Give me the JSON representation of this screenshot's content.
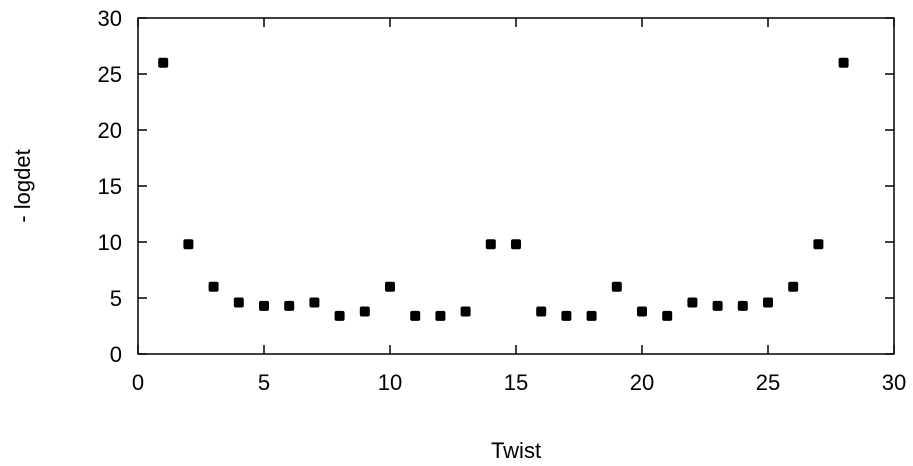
{
  "chart_data": {
    "type": "scatter",
    "title": "",
    "xlabel": "Twist",
    "ylabel": "- logdet",
    "xlim": [
      0,
      30
    ],
    "ylim": [
      0,
      30
    ],
    "xticks": [
      0,
      5,
      10,
      15,
      20,
      25,
      30
    ],
    "yticks": [
      0,
      5,
      10,
      15,
      20,
      25,
      30
    ],
    "grid": false,
    "marker_color": "#000000",
    "series": [
      {
        "x": [
          1,
          2,
          3,
          4,
          5,
          6,
          7,
          8,
          9,
          10,
          11,
          12,
          13,
          14,
          15,
          16,
          17,
          18,
          19,
          20,
          21,
          22,
          23,
          24,
          25,
          26,
          27,
          28
        ],
        "y": [
          26.0,
          9.8,
          6.0,
          4.6,
          4.3,
          4.3,
          4.6,
          3.4,
          3.8,
          6.0,
          3.4,
          3.4,
          3.8,
          9.8,
          9.8,
          3.8,
          3.4,
          3.4,
          6.0,
          3.8,
          3.4,
          4.6,
          4.3,
          4.3,
          4.6,
          6.0,
          9.8,
          26.0
        ]
      }
    ]
  }
}
